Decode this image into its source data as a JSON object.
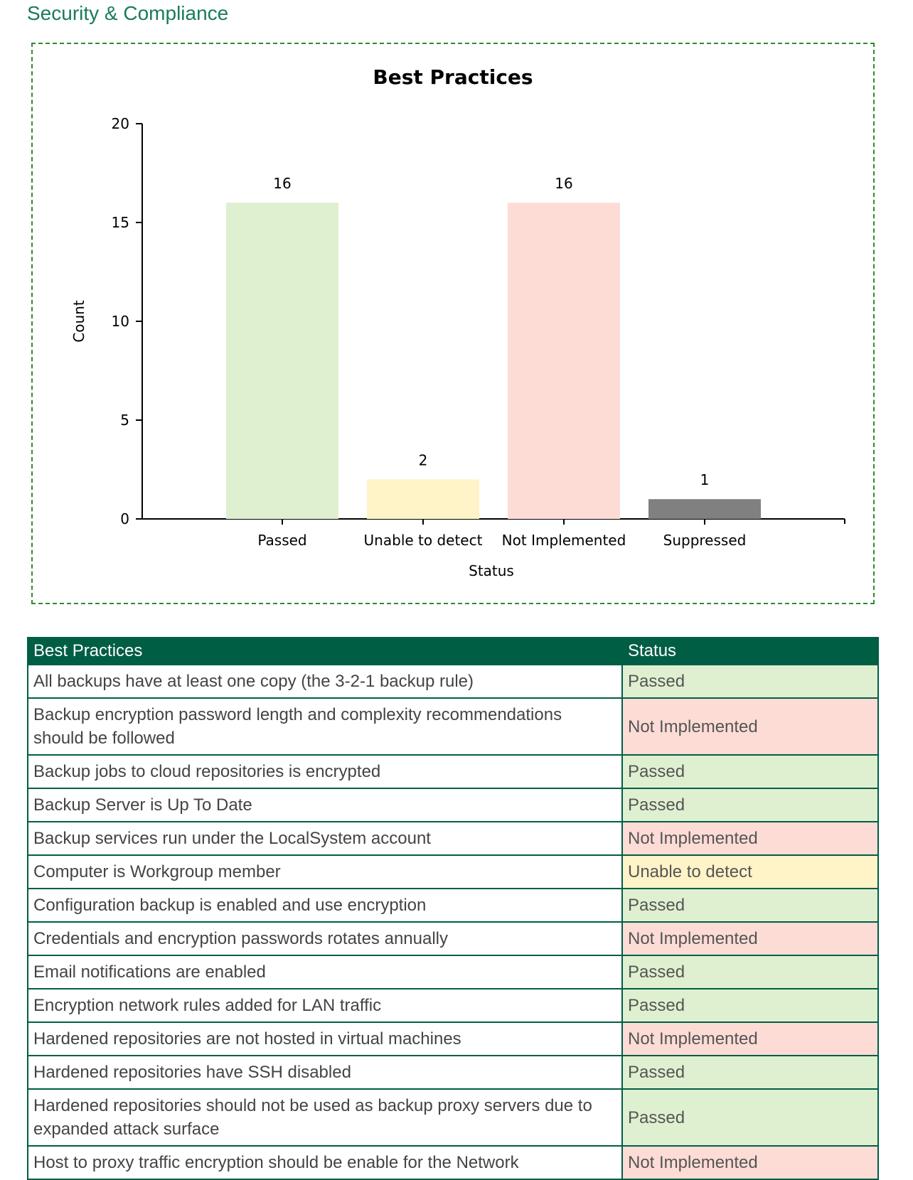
{
  "section_title": "Security & Compliance",
  "colors": {
    "header_bg": "#005e45",
    "passed": "#dff0d0",
    "unable": "#fff3c8",
    "not_implemented": "#fddcd6",
    "suppressed": "#808080"
  },
  "chart_data": {
    "type": "bar",
    "title": "Best Practices",
    "xlabel": "Status",
    "ylabel": "Count",
    "categories": [
      "Passed",
      "Unable to detect",
      "Not Implemented",
      "Suppressed"
    ],
    "values": [
      16,
      2,
      16,
      1
    ],
    "bar_colors": [
      "#dff0d0",
      "#fff3c8",
      "#fddcd6",
      "#808080"
    ],
    "ylim": [
      0,
      20
    ],
    "yticks": [
      0,
      5,
      10,
      15,
      20
    ],
    "data_labels": true,
    "grid": false
  },
  "table": {
    "columns": [
      "Best Practices",
      "Status"
    ],
    "rows": [
      {
        "practice": "All backups have at least one copy (the 3-2-1 backup rule)",
        "status": "Passed"
      },
      {
        "practice": "Backup encryption password length and complexity recommendations should be followed",
        "status": "Not Implemented"
      },
      {
        "practice": "Backup jobs to cloud repositories is encrypted",
        "status": "Passed"
      },
      {
        "practice": "Backup Server is Up To Date",
        "status": "Passed"
      },
      {
        "practice": "Backup services run under the LocalSystem account",
        "status": "Not Implemented"
      },
      {
        "practice": "Computer is Workgroup member",
        "status": "Unable to detect"
      },
      {
        "practice": "Configuration backup is enabled and use encryption",
        "status": "Passed"
      },
      {
        "practice": "Credentials and encryption passwords rotates annually",
        "status": "Not Implemented"
      },
      {
        "practice": "Email notifications are enabled",
        "status": "Passed"
      },
      {
        "practice": "Encryption network rules added for LAN traffic",
        "status": "Passed"
      },
      {
        "practice": "Hardened repositories are not hosted in virtual machines",
        "status": "Not Implemented"
      },
      {
        "practice": "Hardened repositories have SSH disabled",
        "status": "Passed"
      },
      {
        "practice": "Hardened repositories should not be used as backup proxy servers due to expanded attack surface",
        "status": "Passed"
      },
      {
        "practice": "Host to proxy traffic encryption should be enable for the Network",
        "status": "Not Implemented"
      }
    ]
  }
}
